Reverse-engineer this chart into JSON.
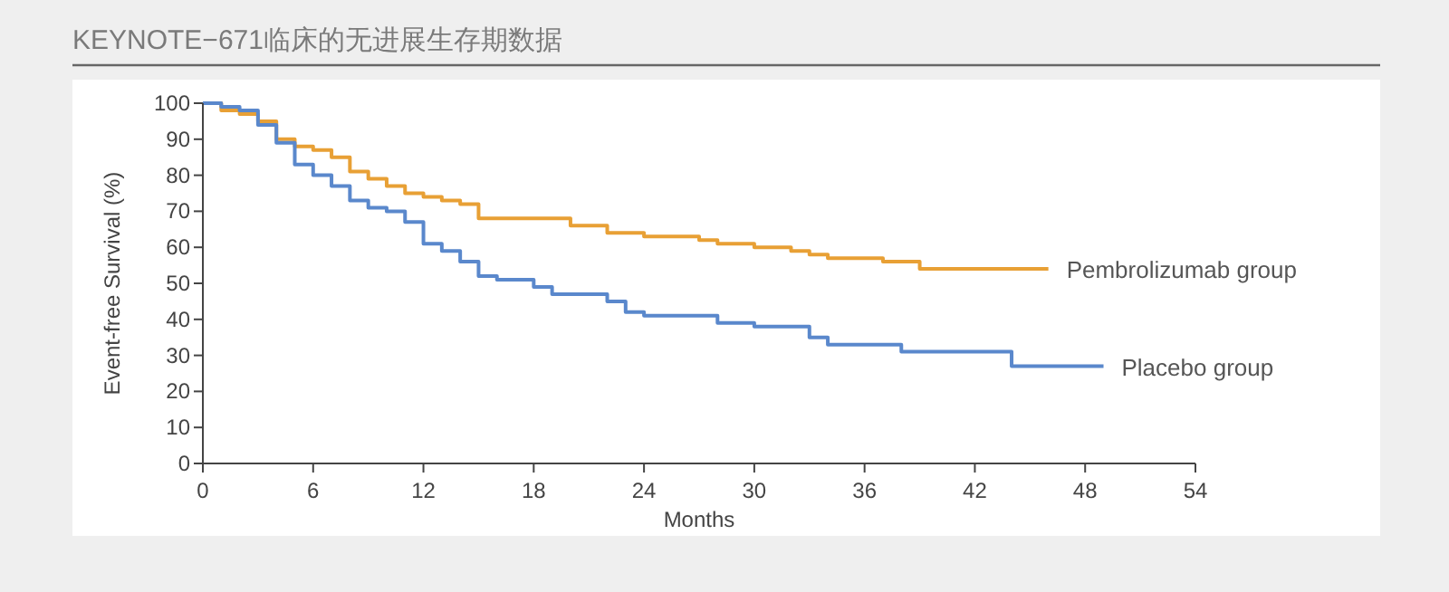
{
  "chart_data": {
    "type": "step",
    "title": "KEYNOTE−671临床的无进展生存期数据",
    "xlabel": "Months",
    "ylabel": "Event-free Survival (%)",
    "xlim": [
      0,
      54
    ],
    "xticks": [
      0,
      6,
      12,
      18,
      24,
      30,
      36,
      42,
      48,
      54
    ],
    "ylim": [
      0,
      100
    ],
    "yticks": [
      0,
      10,
      20,
      30,
      40,
      50,
      60,
      70,
      80,
      90,
      100
    ],
    "grid": false,
    "legend": false,
    "series": [
      {
        "name": "Pembrolizumab group",
        "color": "#e8a035",
        "x": [
          0,
          1,
          2,
          3,
          4,
          5,
          6,
          7,
          8,
          9,
          10,
          11,
          12,
          13,
          14,
          15,
          18,
          20,
          22,
          24,
          27,
          28,
          30,
          32,
          33,
          34,
          37,
          39,
          46
        ],
        "values": [
          100,
          98,
          97,
          95,
          90,
          88,
          87,
          85,
          81,
          79,
          77,
          75,
          74,
          73,
          72,
          68,
          68,
          66,
          64,
          63,
          62,
          61,
          60,
          59,
          58,
          57,
          56,
          54,
          54
        ]
      },
      {
        "name": "Placebo group",
        "color": "#5a88cc",
        "x": [
          0,
          1,
          2,
          3,
          4,
          5,
          6,
          7,
          8,
          9,
          10,
          11,
          12,
          13,
          14,
          15,
          16,
          18,
          19,
          22,
          23,
          24,
          28,
          30,
          33,
          34,
          38,
          44,
          49
        ],
        "values": [
          100,
          99,
          98,
          94,
          89,
          83,
          80,
          77,
          73,
          71,
          70,
          67,
          61,
          59,
          56,
          52,
          51,
          49,
          47,
          45,
          42,
          41,
          39,
          38,
          35,
          33,
          31,
          27,
          27
        ]
      }
    ]
  }
}
